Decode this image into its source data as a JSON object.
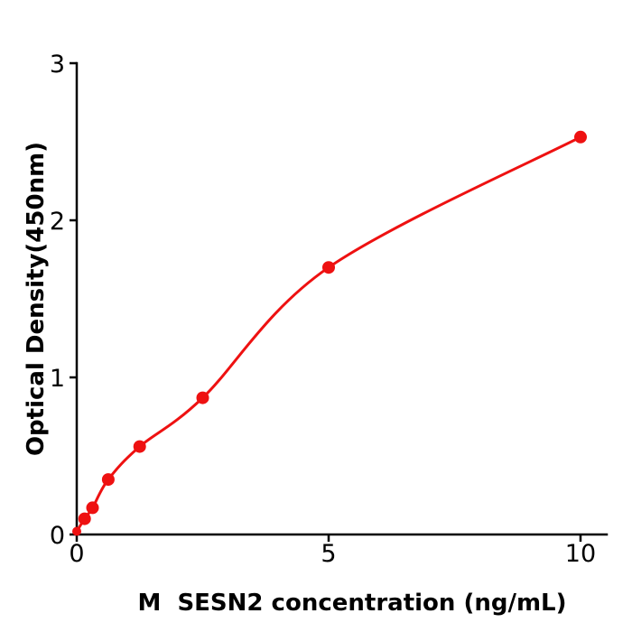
{
  "chart_data": {
    "type": "scatter",
    "title": "",
    "xlabel": "M  SESN2 concentration (ng/mL)",
    "ylabel": "Optical Density(450nm)",
    "x": [
      0,
      0.156,
      0.313,
      0.625,
      1.25,
      2.5,
      5,
      10
    ],
    "y": [
      0.02,
      0.1,
      0.17,
      0.35,
      0.56,
      0.87,
      1.7,
      2.53
    ],
    "x_tick_labels": [
      "0",
      "5",
      "10"
    ],
    "x_tick_values": [
      0,
      5,
      10
    ],
    "y_tick_labels": [
      "0",
      "1",
      "2",
      "3"
    ],
    "y_tick_values": [
      0,
      1,
      2,
      3
    ],
    "xlim": [
      0,
      10.52
    ],
    "ylim": [
      0,
      3
    ],
    "grid": false,
    "legend": null,
    "marker_color": "#ee1111",
    "line_color": "#ee1111",
    "axis_color": "#000000",
    "curve_type": "smooth fit line through data points"
  }
}
